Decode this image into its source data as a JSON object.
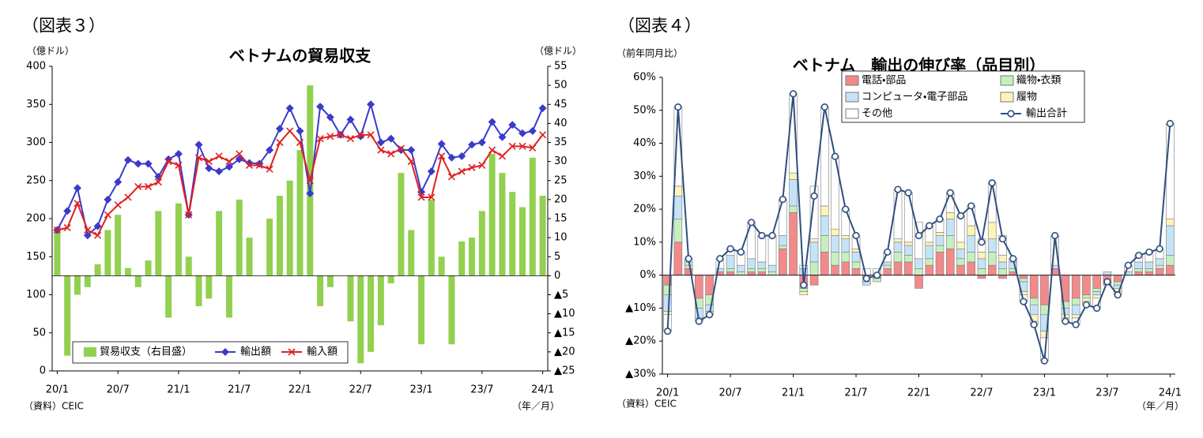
{
  "chart_data": [
    {
      "type": "combo",
      "figure_label": "（図表３）",
      "title": "ベトナムの貿易収支",
      "y_unit": "（億ドル）",
      "y2_unit": "（億ドル）",
      "source": "（資料）CEIC",
      "x_unit": "（年／月）",
      "categories": [
        "20/1",
        null,
        null,
        null,
        null,
        null,
        "20/7",
        null,
        null,
        null,
        null,
        null,
        "21/1",
        null,
        null,
        null,
        null,
        null,
        "21/7",
        null,
        null,
        null,
        null,
        null,
        "22/1",
        null,
        null,
        null,
        null,
        null,
        "22/7",
        null,
        null,
        null,
        null,
        null,
        "23/1",
        null,
        null,
        null,
        null,
        null,
        "23/7",
        null,
        null,
        null,
        null,
        null,
        "24/1"
      ],
      "ylim": [
        0,
        400
      ],
      "yticks": [
        0,
        50,
        100,
        150,
        200,
        250,
        300,
        350,
        400
      ],
      "y2lim": [
        -25,
        55
      ],
      "y2ticks": [
        {
          "value": -25,
          "label": "▲25"
        },
        {
          "value": -20,
          "label": "▲20"
        },
        {
          "value": -15,
          "label": "▲15"
        },
        {
          "value": -10,
          "label": "▲10"
        },
        {
          "value": -5,
          "label": "▲5"
        },
        0,
        5,
        10,
        15,
        20,
        25,
        30,
        35,
        40,
        45,
        50,
        55
      ],
      "series": [
        {
          "name": "貿易収支（右目盛）",
          "type": "bar",
          "axis": "y2",
          "color": "#92d050",
          "values": [
            12,
            -21,
            -5,
            -3,
            3,
            12,
            16,
            2,
            -3,
            4,
            17,
            -11,
            19,
            5,
            -8,
            -6,
            17,
            -11,
            20,
            10,
            0,
            15,
            21,
            25,
            33,
            50,
            -8,
            -3,
            0,
            -12,
            -23,
            -20,
            -13,
            -2,
            27,
            12,
            -18,
            20,
            5,
            -18,
            9,
            10,
            17,
            32,
            27,
            22,
            18,
            31,
            21
          ]
        },
        {
          "name": "輸出額",
          "type": "line",
          "marker": "diamond",
          "color": "#3a3acc",
          "values": [
            185,
            210,
            240,
            178,
            190,
            225,
            248,
            277,
            272,
            272,
            255,
            278,
            285,
            205,
            297,
            266,
            262,
            268,
            278,
            273,
            272,
            290,
            318,
            345,
            315,
            233,
            347,
            333,
            310,
            330,
            308,
            350,
            300,
            305,
            290,
            290,
            235,
            262,
            298,
            280,
            282,
            297,
            300,
            327,
            307,
            323,
            312,
            315,
            345
          ]
        },
        {
          "name": "輸入額",
          "type": "line",
          "marker": "x",
          "color": "#e02020",
          "values": [
            185,
            188,
            220,
            185,
            178,
            205,
            218,
            228,
            242,
            242,
            248,
            275,
            270,
            205,
            280,
            275,
            282,
            275,
            285,
            270,
            270,
            265,
            300,
            315,
            300,
            250,
            305,
            308,
            310,
            305,
            310,
            310,
            290,
            285,
            292,
            275,
            228,
            228,
            282,
            255,
            262,
            267,
            270,
            290,
            282,
            295,
            295,
            293,
            310
          ]
        }
      ]
    },
    {
      "type": "combo",
      "figure_label": "（図表４）",
      "title": "ベトナム　輸出の伸び率（品目別）",
      "y_unit": "（前年同月比）",
      "source": "（資料）CEIC",
      "x_unit": "（年／月）",
      "categories": [
        "20/1",
        null,
        null,
        null,
        null,
        null,
        "20/7",
        null,
        null,
        null,
        null,
        null,
        "21/1",
        null,
        null,
        null,
        null,
        null,
        "21/7",
        null,
        null,
        null,
        null,
        null,
        "22/1",
        null,
        null,
        null,
        null,
        null,
        "22/7",
        null,
        null,
        null,
        null,
        null,
        "23/1",
        null,
        null,
        null,
        null,
        null,
        "23/7",
        null,
        null,
        null,
        null,
        null,
        "24/1"
      ],
      "ylim": [
        -30,
        60
      ],
      "yticks": [
        {
          "value": -30,
          "label": "▲30%"
        },
        {
          "value": -20,
          "label": "▲20%"
        },
        {
          "value": -10,
          "label": "▲10%"
        },
        {
          "value": 0,
          "label": "0%"
        },
        {
          "value": 10,
          "label": "10%"
        },
        {
          "value": 20,
          "label": "20%"
        },
        {
          "value": 30,
          "label": "30%"
        },
        {
          "value": 40,
          "label": "40%"
        },
        {
          "value": 50,
          "label": "50%"
        },
        {
          "value": 60,
          "label": "60%"
        }
      ],
      "series": [
        {
          "name": "電話・部品",
          "type": "stacked-bar",
          "color": "#f28a8a",
          "values": [
            -3,
            10,
            2,
            -7,
            -6,
            1,
            1,
            0,
            1,
            1,
            0,
            8,
            19,
            -4,
            -3,
            7,
            3,
            4,
            2,
            -1,
            -1,
            2,
            4,
            4,
            -4,
            3,
            7,
            8,
            3,
            4,
            -1,
            3,
            -1,
            1,
            -1,
            -7,
            -9,
            2,
            -8,
            -7,
            -6,
            -4,
            -3,
            -2,
            0,
            1,
            1,
            2,
            3
          ]
        },
        {
          "name": "織物・衣類",
          "type": "stacked-bar",
          "color": "#c6efc0",
          "values": [
            -3,
            7,
            1,
            -3,
            -3,
            0,
            1,
            1,
            1,
            1,
            1,
            1,
            2,
            -1,
            4,
            5,
            4,
            3,
            2,
            -1,
            -1,
            1,
            3,
            2,
            2,
            2,
            2,
            4,
            2,
            3,
            2,
            4,
            2,
            1,
            -1,
            -2,
            -3,
            0,
            -2,
            -2,
            -1,
            -1,
            0,
            -1,
            0,
            1,
            1,
            1,
            3
          ]
        },
        {
          "name": "コンピュータ・電子部品",
          "type": "stacked-bar",
          "color": "#c5e3f7",
          "values": [
            -5,
            7,
            1,
            -3,
            -2,
            1,
            4,
            2,
            3,
            2,
            2,
            3,
            8,
            2,
            6,
            6,
            5,
            4,
            3,
            -1,
            0,
            1,
            3,
            3,
            3,
            4,
            3,
            5,
            3,
            5,
            3,
            4,
            2,
            2,
            -3,
            -3,
            -5,
            1,
            -2,
            -3,
            0,
            -1,
            1,
            -1,
            1,
            2,
            2,
            2,
            9
          ]
        },
        {
          "name": "履物",
          "type": "stacked-bar",
          "color": "#fdf4b8",
          "values": [
            -1,
            3,
            0,
            -1,
            -1,
            0,
            0,
            0,
            0,
            0,
            0,
            0,
            2,
            -1,
            1,
            3,
            2,
            1,
            1,
            0,
            0,
            0,
            1,
            1,
            0,
            1,
            1,
            2,
            2,
            3,
            2,
            5,
            2,
            1,
            -1,
            -2,
            -2,
            0,
            -1,
            -1,
            -1,
            -1,
            0,
            -1,
            0,
            0,
            0,
            0,
            2
          ]
        },
        {
          "name": "その他",
          "type": "stacked-bar",
          "color": "#ffffff",
          "values": [
            -5,
            24,
            1,
            0,
            0,
            3,
            2,
            4,
            11,
            8,
            9,
            11,
            24,
            1,
            16,
            30,
            22,
            8,
            4,
            2,
            2,
            3,
            15,
            15,
            11,
            5,
            4,
            6,
            8,
            6,
            4,
            12,
            6,
            0,
            -2,
            -1,
            -7,
            9,
            -1,
            -2,
            -1,
            -3,
            0,
            -1,
            2,
            2,
            3,
            3,
            29
          ]
        },
        {
          "name": "輸出合計",
          "type": "line",
          "marker": "circle",
          "color": "#2f4f7f",
          "values": [
            -17,
            51,
            5,
            -14,
            -12,
            5,
            8,
            7,
            16,
            12,
            12,
            23,
            55,
            -3,
            24,
            51,
            36,
            20,
            12,
            -1,
            0,
            7,
            26,
            25,
            12,
            15,
            17,
            25,
            18,
            21,
            10,
            28,
            11,
            5,
            -8,
            -15,
            -26,
            12,
            -14,
            -15,
            -9,
            -10,
            -2,
            -6,
            3,
            6,
            7,
            8,
            46
          ]
        }
      ]
    }
  ]
}
